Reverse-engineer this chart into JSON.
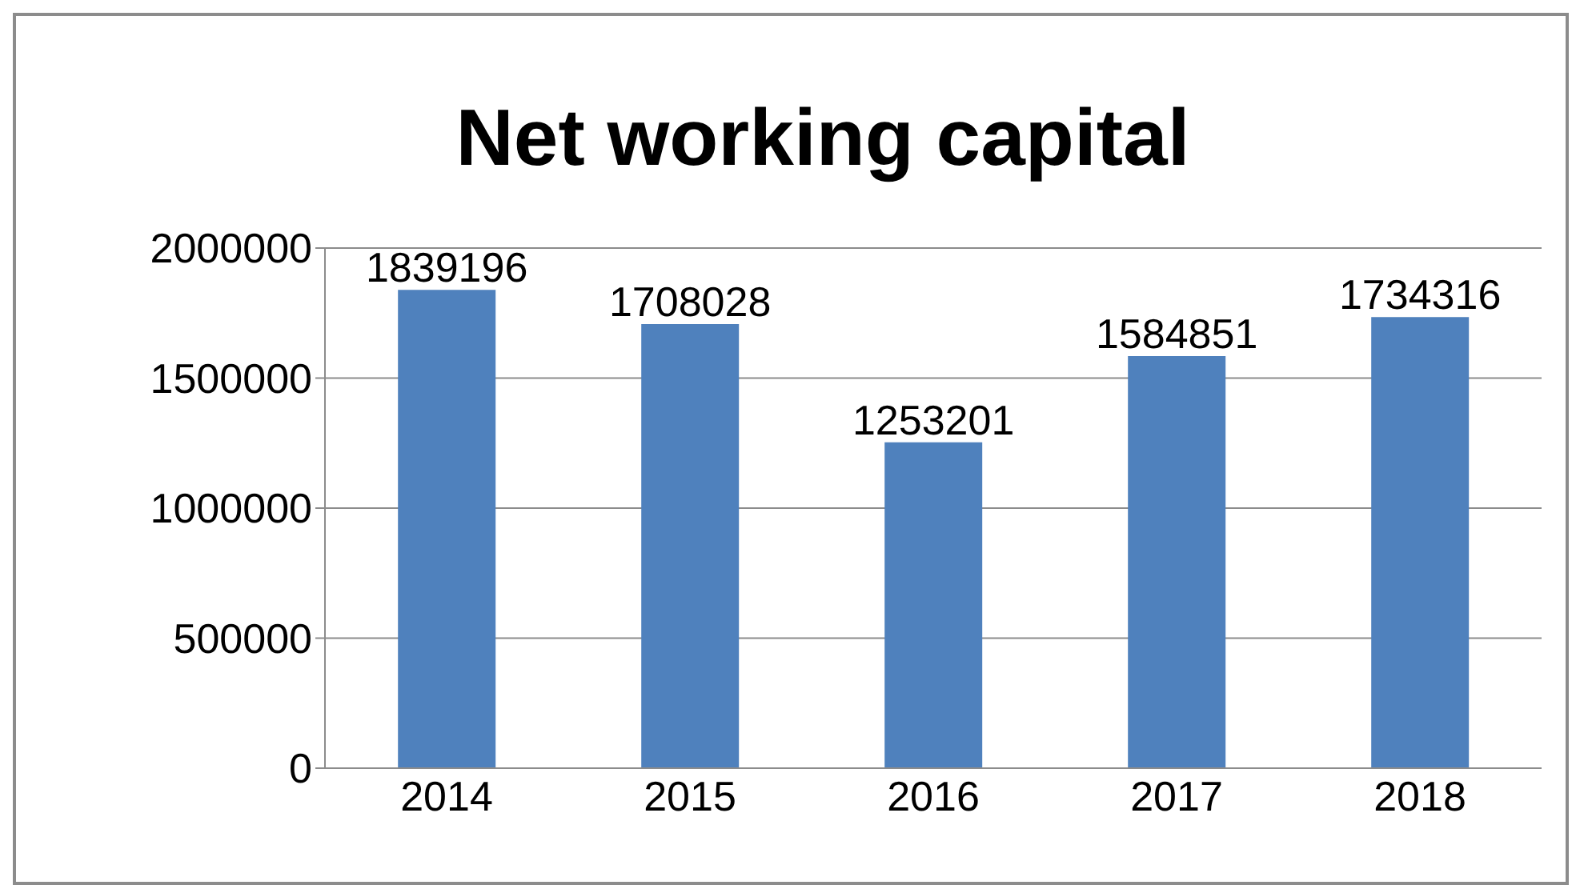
{
  "chart_data": {
    "type": "bar",
    "title": "Net working capital",
    "categories": [
      "2014",
      "2015",
      "2016",
      "2017",
      "2018"
    ],
    "values": [
      1839196,
      1708028,
      1253201,
      1584851,
      1734316
    ],
    "color": "#4f81bd",
    "ylim": [
      0,
      2000000
    ],
    "yticks": [
      0,
      500000,
      1000000,
      1500000,
      2000000
    ],
    "grid": "y",
    "legend": false,
    "data_labels": true
  }
}
